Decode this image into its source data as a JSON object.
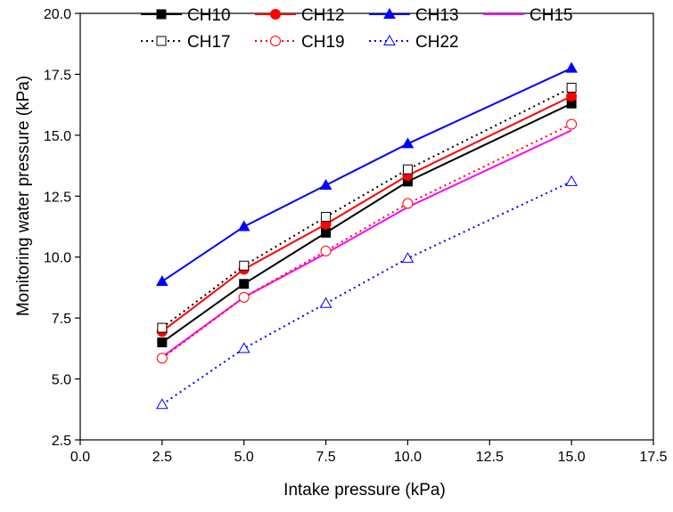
{
  "chart_data": {
    "type": "line",
    "xlabel": "Intake pressure (kPa)",
    "ylabel": "Monitoring water pressure (kPa)",
    "xlim": [
      0.0,
      17.5
    ],
    "ylim": [
      2.5,
      20.0
    ],
    "xticks": [
      "0.0",
      "2.5",
      "5.0",
      "7.5",
      "10.0",
      "12.5",
      "15.0",
      "17.5"
    ],
    "yticks": [
      "2.5",
      "5.0",
      "7.5",
      "10.0",
      "12.5",
      "15.0",
      "17.5",
      "20.0"
    ],
    "x": [
      2.5,
      5.0,
      7.5,
      10.0,
      15.0
    ],
    "grid": false,
    "legend_position": "top",
    "series": [
      {
        "name": "CH10",
        "values": [
          6.5,
          8.9,
          11.0,
          13.1,
          16.3
        ],
        "color": "#000000",
        "marker": "filled-square",
        "line": "solid"
      },
      {
        "name": "CH12",
        "values": [
          6.95,
          9.5,
          11.35,
          13.35,
          16.6
        ],
        "color": "#ff0000",
        "marker": "filled-circle",
        "line": "solid"
      },
      {
        "name": "CH13",
        "values": [
          9.0,
          11.25,
          12.95,
          14.65,
          17.75
        ],
        "color": "#0000ff",
        "marker": "filled-triangle",
        "line": "solid"
      },
      {
        "name": "CH15",
        "values": [
          5.9,
          8.35,
          10.15,
          12.05,
          15.2
        ],
        "color": "#ff00ff",
        "marker": "none",
        "line": "solid"
      },
      {
        "name": "CH17",
        "values": [
          7.1,
          9.65,
          11.65,
          13.6,
          16.95
        ],
        "color": "#000000",
        "marker": "open-square",
        "line": "dotted"
      },
      {
        "name": "CH19",
        "values": [
          5.85,
          8.35,
          10.25,
          12.2,
          15.45
        ],
        "color": "#ff0000",
        "marker": "open-circle",
        "line": "dotted"
      },
      {
        "name": "CH22",
        "values": [
          3.95,
          6.25,
          8.1,
          9.95,
          13.1
        ],
        "color": "#0000ff",
        "marker": "open-triangle",
        "line": "dotted"
      }
    ]
  }
}
